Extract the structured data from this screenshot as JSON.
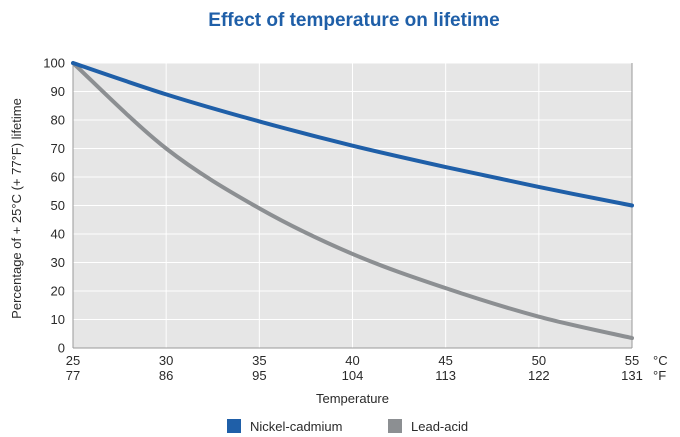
{
  "chart_data": {
    "type": "line",
    "title": "Effect of temperature on lifetime",
    "xlabel": "Temperature",
    "ylabel": "Percentage of + 25°C (+ 77°F) lifetime",
    "x_unit_primary": "°C",
    "x_unit_secondary": "°F",
    "x": [
      25,
      30,
      35,
      40,
      45,
      50,
      55
    ],
    "x_fahrenheit": [
      77,
      86,
      95,
      104,
      113,
      122,
      131
    ],
    "xlim": [
      25,
      55
    ],
    "ylim": [
      0,
      100
    ],
    "yticks": [
      0,
      10,
      20,
      30,
      40,
      50,
      60,
      70,
      80,
      90,
      100
    ],
    "grid": true,
    "legend_position": "bottom",
    "series": [
      {
        "name": "Nickel-cadmium",
        "color": "#1f5fa8",
        "values": [
          100,
          89,
          79.5,
          71,
          63.5,
          56.5,
          50
        ]
      },
      {
        "name": "Lead-acid",
        "color": "#8c8f92",
        "values": [
          100,
          70,
          49,
          33,
          21,
          11,
          3.5
        ]
      }
    ]
  },
  "colors": {
    "plot_background": "#e6e6e6",
    "grid": "#ffffff",
    "title": "#1f5fa8"
  }
}
